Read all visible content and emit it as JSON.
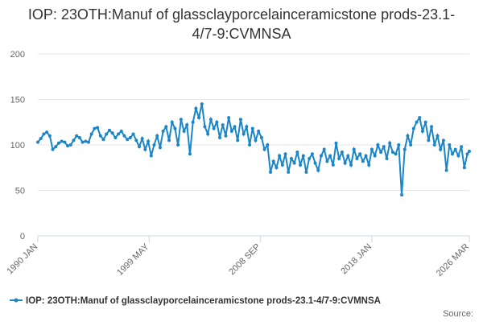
{
  "chart_data": {
    "type": "line",
    "title": "IOP: 23OTH:Manuf of glassclayporcelainceramicstone prods-23.1-4/7-9:CVMNSA",
    "x": [
      "1990-01",
      "1990-04",
      "1990-07",
      "1990-10",
      "1991-01",
      "1991-04",
      "1991-07",
      "1991-10",
      "1992-01",
      "1992-04",
      "1992-07",
      "1992-10",
      "1993-01",
      "1993-04",
      "1993-07",
      "1993-10",
      "1994-01",
      "1994-04",
      "1994-07",
      "1994-10",
      "1995-01",
      "1995-04",
      "1995-07",
      "1995-10",
      "1996-01",
      "1996-04",
      "1996-07",
      "1996-10",
      "1997-01",
      "1997-04",
      "1997-07",
      "1997-10",
      "1998-01",
      "1998-04",
      "1998-07",
      "1998-10",
      "1999-01",
      "1999-04",
      "1999-07",
      "1999-10",
      "2000-01",
      "2000-04",
      "2000-07",
      "2000-10",
      "2001-01",
      "2001-04",
      "2001-07",
      "2001-10",
      "2002-01",
      "2002-04",
      "2002-07",
      "2002-10",
      "2003-01",
      "2003-04",
      "2003-07",
      "2003-10",
      "2004-01",
      "2004-04",
      "2004-07",
      "2004-10",
      "2005-01",
      "2005-04",
      "2005-07",
      "2005-10",
      "2006-01",
      "2006-04",
      "2006-07",
      "2006-10",
      "2007-01",
      "2007-04",
      "2007-07",
      "2007-10",
      "2008-01",
      "2008-04",
      "2008-07",
      "2008-10",
      "2009-01",
      "2009-04",
      "2009-07",
      "2009-10",
      "2010-01",
      "2010-04",
      "2010-07",
      "2010-10",
      "2011-01",
      "2011-04",
      "2011-07",
      "2011-10",
      "2012-01",
      "2012-04",
      "2012-07",
      "2012-10",
      "2013-01",
      "2013-04",
      "2013-07",
      "2013-10",
      "2014-01",
      "2014-04",
      "2014-07",
      "2014-10",
      "2015-01",
      "2015-04",
      "2015-07",
      "2015-10",
      "2016-01",
      "2016-04",
      "2016-07",
      "2016-10",
      "2017-01",
      "2017-04",
      "2017-07",
      "2017-10",
      "2018-01",
      "2018-04",
      "2018-07",
      "2018-10",
      "2019-01",
      "2019-04",
      "2019-07",
      "2019-10",
      "2020-01",
      "2020-04",
      "2020-07",
      "2020-10",
      "2021-01",
      "2021-04",
      "2021-07",
      "2021-10",
      "2022-01",
      "2022-04",
      "2022-07",
      "2022-10",
      "2023-01",
      "2023-04",
      "2023-07",
      "2023-10",
      "2024-01",
      "2024-04",
      "2024-07",
      "2024-10",
      "2025-01",
      "2025-04",
      "2025-07",
      "2025-10",
      "2026-01",
      "2026-03"
    ],
    "series": [
      {
        "name": "IOP: 23OTH:Manuf of glassclayporcelainceramicstone prods-23.1-4/7-9:CVMNSA",
        "color": "#1a86c8",
        "values": [
          103,
          107,
          112,
          114,
          110,
          95,
          98,
          102,
          104,
          103,
          99,
          100,
          105,
          110,
          108,
          103,
          104,
          103,
          112,
          118,
          119,
          110,
          106,
          112,
          116,
          113,
          108,
          112,
          115,
          110,
          106,
          108,
          112,
          105,
          98,
          107,
          95,
          104,
          88,
          100,
          110,
          97,
          115,
          120,
          105,
          125,
          118,
          100,
          128,
          115,
          122,
          90,
          125,
          140,
          130,
          145,
          120,
          112,
          128,
          118,
          125,
          108,
          122,
          110,
          130,
          115,
          120,
          105,
          128,
          112,
          120,
          100,
          118,
          105,
          115,
          108,
          95,
          100,
          70,
          82,
          75,
          88,
          78,
          90,
          70,
          85,
          80,
          92,
          78,
          88,
          70,
          85,
          90,
          80,
          72,
          88,
          95,
          82,
          88,
          78,
          102,
          85,
          92,
          80,
          88,
          78,
          95,
          85,
          90,
          82,
          88,
          78,
          95,
          88,
          100,
          92,
          98,
          85,
          102,
          92,
          90,
          100,
          45,
          95,
          110,
          100,
          118,
          125,
          130,
          115,
          125,
          105,
          120,
          100,
          110,
          95,
          105,
          72,
          100,
          90,
          95,
          88,
          98,
          75,
          90,
          93
        ]
      }
    ],
    "ylim": [
      0,
      200
    ],
    "yticks": [
      0,
      50,
      100,
      150,
      200
    ],
    "xlim": [
      "1990-01",
      "2026-03"
    ],
    "xticks": [
      {
        "value": "1990-01",
        "label": "1990 JAN"
      },
      {
        "value": "1999-05",
        "label": "1999 MAY"
      },
      {
        "value": "2008-09",
        "label": "2008 SEP"
      },
      {
        "value": "2018-01",
        "label": "2018 JAN"
      },
      {
        "value": "2026-03",
        "label": "2026 MAR"
      }
    ],
    "grid": true,
    "source_label": "Source:"
  }
}
